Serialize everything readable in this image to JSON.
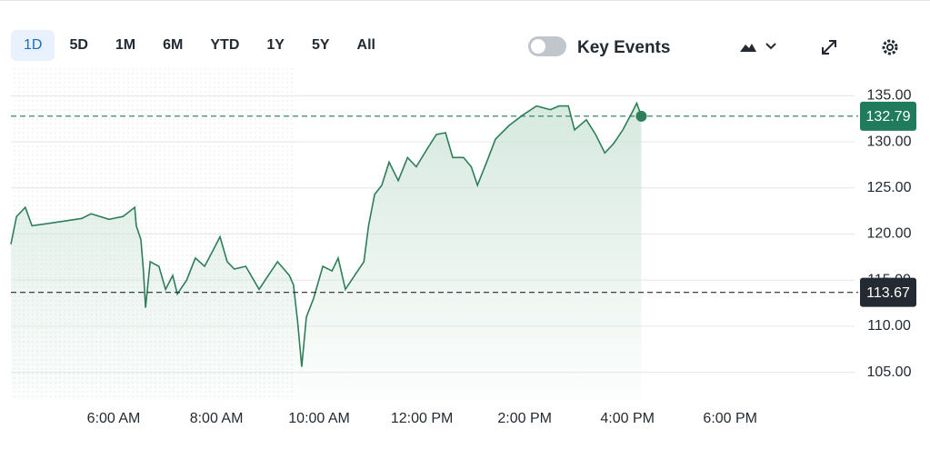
{
  "toolbar": {
    "ranges": [
      "1D",
      "5D",
      "1M",
      "6M",
      "YTD",
      "1Y",
      "5Y",
      "All"
    ],
    "selected": 0,
    "toggle_label": "Key Events"
  },
  "chart_data": {
    "type": "line",
    "color": "#2e7d5b",
    "x": [
      4.0,
      4.11,
      4.28,
      4.41,
      4.67,
      5.03,
      5.38,
      5.56,
      5.91,
      6.18,
      6.41,
      6.44,
      6.53,
      6.58,
      6.62,
      6.71,
      6.88,
      7.01,
      7.15,
      7.24,
      7.42,
      7.59,
      7.77,
      7.95,
      8.07,
      8.21,
      8.35,
      8.57,
      8.83,
      9.01,
      9.19,
      9.42,
      9.5,
      9.58,
      9.66,
      9.75,
      9.89,
      10.07,
      10.25,
      10.37,
      10.51,
      10.69,
      10.87,
      10.96,
      11.08,
      11.22,
      11.36,
      11.54,
      11.72,
      11.89,
      12.11,
      12.28,
      12.46,
      12.6,
      12.81,
      12.96,
      13.08,
      13.26,
      13.43,
      13.7,
      13.96,
      14.23,
      14.5,
      14.67,
      14.85,
      14.97,
      15.2,
      15.38,
      15.56,
      15.73,
      15.91,
      16.09,
      16.18,
      16.27
    ],
    "values": [
      118.9,
      121.9,
      122.9,
      120.9,
      121.1,
      121.4,
      121.7,
      122.2,
      121.6,
      121.9,
      122.9,
      120.9,
      119.4,
      116.0,
      112.0,
      117.0,
      116.5,
      114.0,
      115.5,
      113.5,
      115.0,
      117.4,
      116.5,
      118.4,
      119.7,
      117.0,
      116.2,
      116.5,
      114.0,
      115.5,
      117.0,
      115.5,
      114.5,
      110.5,
      105.6,
      111.0,
      113.0,
      116.5,
      116.0,
      117.4,
      114.0,
      115.5,
      117.0,
      120.9,
      124.3,
      125.3,
      127.8,
      125.8,
      128.3,
      127.3,
      129.3,
      130.8,
      131.0,
      128.3,
      128.3,
      127.3,
      125.3,
      127.8,
      130.3,
      131.8,
      132.9,
      133.9,
      133.5,
      133.9,
      133.9,
      131.3,
      132.4,
      130.8,
      128.8,
      129.8,
      131.3,
      133.2,
      134.2,
      132.79
    ],
    "xlim": [
      4,
      20.42
    ],
    "xticks": [
      {
        "value": 6,
        "label": "6:00 AM"
      },
      {
        "value": 8,
        "label": "8:00 AM"
      },
      {
        "value": 10,
        "label": "10:00 AM"
      },
      {
        "value": 12,
        "label": "12:00 PM"
      },
      {
        "value": 14,
        "label": "2:00 PM"
      },
      {
        "value": 16,
        "label": "4:00 PM"
      },
      {
        "value": 18,
        "label": "6:00 PM"
      }
    ],
    "ylim": [
      102,
      138
    ],
    "yticks": [
      {
        "value": 105,
        "label": "105.00"
      },
      {
        "value": 110,
        "label": "110.00"
      },
      {
        "value": 115,
        "label": "115.00"
      },
      {
        "value": 120,
        "label": "120.00"
      },
      {
        "value": 125,
        "label": "125.00"
      },
      {
        "value": 130,
        "label": "130.00"
      },
      {
        "value": 135,
        "label": "135.00"
      }
    ],
    "grid": true,
    "reference_lines": [
      {
        "value": 132.79,
        "color": "#207a5c"
      },
      {
        "value": 113.67,
        "color": "#232a31"
      }
    ]
  }
}
